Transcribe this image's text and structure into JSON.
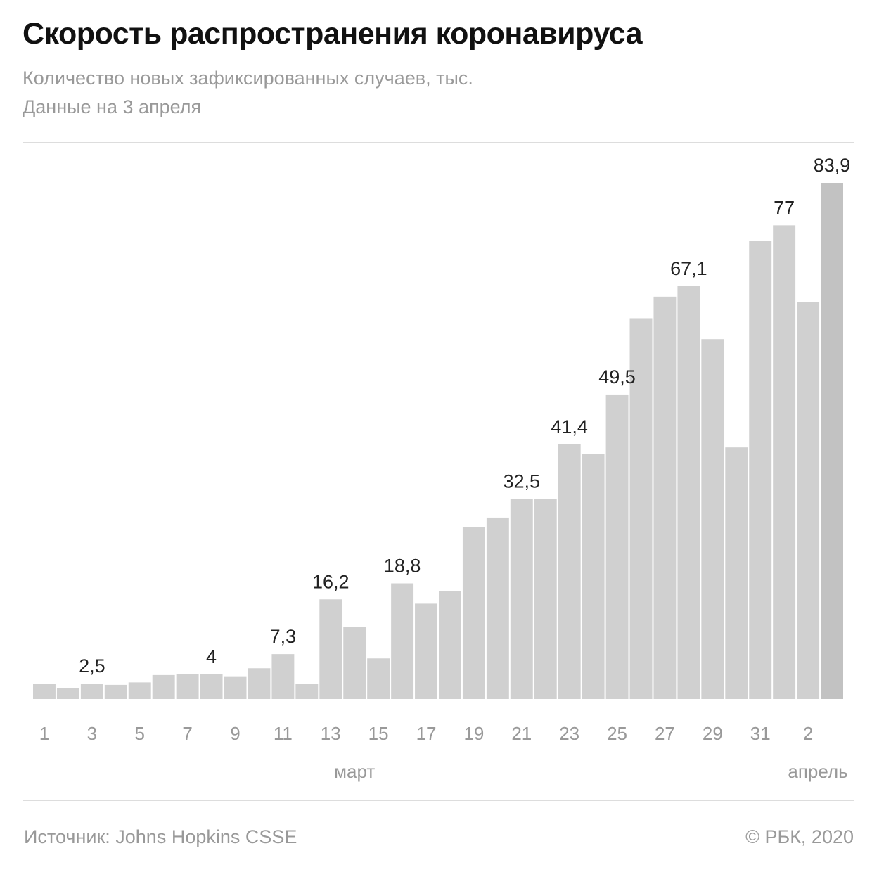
{
  "chart_data": {
    "type": "bar",
    "title": "Скорость распространения коронавируса",
    "subtitle": "Количество новых зафиксированных случаев, тыс.",
    "date_note": "Данные на 3 апреля",
    "categories": [
      "1",
      "2",
      "3",
      "4",
      "5",
      "6",
      "7",
      "8",
      "9",
      "10",
      "11",
      "12",
      "13",
      "14",
      "15",
      "16",
      "17",
      "18",
      "19",
      "20",
      "21",
      "22",
      "23",
      "24",
      "25",
      "26",
      "27",
      "28",
      "29",
      "30",
      "31",
      "1",
      "2",
      "3"
    ],
    "values": [
      2.5,
      1.8,
      2.5,
      2.3,
      2.7,
      3.9,
      4.1,
      4.0,
      3.7,
      5.0,
      7.3,
      2.5,
      16.2,
      11.7,
      6.6,
      18.8,
      15.5,
      17.6,
      27.9,
      29.5,
      32.5,
      32.5,
      41.4,
      39.8,
      49.5,
      61.9,
      65.4,
      67.1,
      58.5,
      40.9,
      74.5,
      77.0,
      64.5,
      83.9
    ],
    "data_labels": [
      {
        "index": 2,
        "text": "2,5"
      },
      {
        "index": 7,
        "text": "4"
      },
      {
        "index": 10,
        "text": "7,3"
      },
      {
        "index": 12,
        "text": "16,2"
      },
      {
        "index": 15,
        "text": "18,8"
      },
      {
        "index": 20,
        "text": "32,5"
      },
      {
        "index": 22,
        "text": "41,4"
      },
      {
        "index": 24,
        "text": "49,5"
      },
      {
        "index": 27,
        "text": "67,1"
      },
      {
        "index": 31,
        "text": "77"
      },
      {
        "index": 33,
        "text": "83,9"
      }
    ],
    "tick_labels": [
      {
        "index": 0,
        "text": "1"
      },
      {
        "index": 2,
        "text": "3"
      },
      {
        "index": 4,
        "text": "5"
      },
      {
        "index": 6,
        "text": "7"
      },
      {
        "index": 8,
        "text": "9"
      },
      {
        "index": 10,
        "text": "11"
      },
      {
        "index": 12,
        "text": "13"
      },
      {
        "index": 14,
        "text": "15"
      },
      {
        "index": 16,
        "text": "17"
      },
      {
        "index": 18,
        "text": "19"
      },
      {
        "index": 20,
        "text": "21"
      },
      {
        "index": 22,
        "text": "23"
      },
      {
        "index": 24,
        "text": "25"
      },
      {
        "index": 26,
        "text": "27"
      },
      {
        "index": 28,
        "text": "29"
      },
      {
        "index": 30,
        "text": "31"
      },
      {
        "index": 32,
        "text": "2"
      }
    ],
    "month_labels": [
      {
        "index": 13,
        "text": "март"
      },
      {
        "index": 33,
        "text": "апрель"
      }
    ],
    "ylim": [
      0,
      83.9
    ],
    "grid": false,
    "colors": {
      "bar": "#d0d0d0",
      "highlight": "#c2c2c2",
      "label": "#222222",
      "tick": "#999999"
    },
    "highlight_index": 33
  },
  "footer": {
    "source": "Источник: Johns Hopkins CSSE",
    "copyright": "© РБК, 2020"
  }
}
